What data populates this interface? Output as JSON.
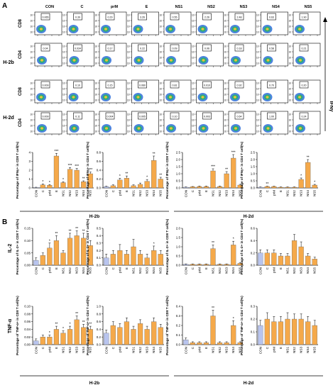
{
  "panel_labels": {
    "a": "A",
    "b": "B"
  },
  "flow": {
    "columns": [
      "CON",
      "C",
      "prM",
      "E",
      "NS1",
      "NS2",
      "NS3",
      "NS4",
      "NS5"
    ],
    "rows": [
      {
        "group": "H-2b",
        "label": "CD8",
        "values": [
          "0.065",
          "0.39",
          "0.29",
          "3.26",
          "0.55",
          "2.26",
          "2.48",
          "0.63",
          "1.90"
        ]
      },
      {
        "group": "H-2b",
        "label": "CD4",
        "values": [
          "0.04",
          "0.034",
          "0.17",
          "0.22",
          "0.09",
          "0.06",
          "0.18",
          "0.58",
          "0.21"
        ]
      },
      {
        "group": "H-2d",
        "label": "CD8",
        "values": [
          "0.009",
          "0.10",
          "0.15",
          "0.060",
          "0.81",
          "0.010",
          "0.92",
          "0.70",
          "0.20"
        ]
      },
      {
        "group": "H-2d",
        "label": "CD4",
        "values": [
          "0.009",
          "0.11",
          "0.004",
          "0.005",
          "0.10",
          "0.003",
          "0.64",
          "1.00",
          "0.24"
        ]
      }
    ],
    "group_labels": [
      "H-2b",
      "H-2d"
    ],
    "right_label": "IFNγ"
  },
  "chart_data": [
    {
      "type": "bar",
      "panel": "A",
      "ylabel": "Percentage of IFNγ+ in CD8 T cell(%)",
      "categories": [
        "CON",
        "C",
        "prM",
        "E",
        "NS1",
        "NS2",
        "NS3",
        "NS4",
        "NS5"
      ],
      "values": [
        0.05,
        0.35,
        0.3,
        3.6,
        0.6,
        2.1,
        2.0,
        0.7,
        1.6
      ],
      "errors": [
        0.03,
        0.1,
        0.08,
        0.3,
        0.1,
        0.2,
        0.2,
        0.1,
        0.2
      ],
      "stars": [
        "",
        "*",
        "*",
        "***",
        "*",
        "***",
        "***",
        "**",
        "***"
      ],
      "ylim": [
        0,
        4
      ],
      "yticks": [
        "0",
        "1",
        "2",
        "3",
        "4"
      ]
    },
    {
      "type": "bar",
      "panel": "A",
      "ylabel": "Percentage of IFNγ+ in CD4 T cell(%)",
      "categories": [
        "CON",
        "C",
        "prM",
        "E",
        "NS1",
        "NS2",
        "NS3",
        "NS4",
        "NS5"
      ],
      "values": [
        0.03,
        0.05,
        0.18,
        0.22,
        0.05,
        0.08,
        0.15,
        0.62,
        0.2
      ],
      "errors": [
        0.01,
        0.02,
        0.04,
        0.05,
        0.02,
        0.03,
        0.04,
        0.1,
        0.04
      ],
      "stars": [
        "",
        "",
        "*",
        "**",
        "",
        "",
        "*",
        "**",
        "**"
      ],
      "ylim": [
        0,
        0.8
      ],
      "yticks": [
        "0.0",
        "0.2",
        "0.4",
        "0.6",
        "0.8"
      ]
    },
    {
      "type": "bar",
      "panel": "A",
      "ylabel": "Percentage of IFNγ+ in CD8 T cell(%)",
      "categories": [
        "CON",
        "C",
        "prM",
        "E",
        "NS1",
        "NS2",
        "NS3",
        "NS4",
        "NS5"
      ],
      "values": [
        0.05,
        0.08,
        0.1,
        0.1,
        1.2,
        0.1,
        1.0,
        2.1,
        0.2
      ],
      "errors": [
        0.02,
        0.02,
        0.03,
        0.03,
        0.15,
        0.03,
        0.15,
        0.25,
        0.05
      ],
      "stars": [
        "",
        "",
        "",
        "",
        "***",
        "",
        "**",
        "***",
        ""
      ],
      "ylim": [
        0,
        2.5
      ],
      "yticks": [
        "0.0",
        "0.5",
        "1.0",
        "1.5",
        "2.0",
        "2.5"
      ]
    },
    {
      "type": "bar",
      "panel": "A",
      "ylabel": "Percentage of IFNγ+ in CD4 T cell(%)",
      "categories": [
        "CON",
        "C",
        "prM",
        "E",
        "NS1",
        "NS2",
        "NS3",
        "NS4",
        "NS5"
      ],
      "values": [
        0.05,
        0.1,
        0.1,
        0.05,
        0.05,
        0.05,
        0.6,
        1.8,
        0.2
      ],
      "errors": [
        0.02,
        0.02,
        0.02,
        0.02,
        0.02,
        0.02,
        0.1,
        0.2,
        0.05
      ],
      "stars": [
        "",
        "**",
        "",
        "",
        "",
        "",
        "*",
        "**",
        "*"
      ],
      "ylim": [
        0,
        2.5
      ],
      "yticks": [
        "0.0",
        "0.5",
        "1.0",
        "1.5",
        "2.0",
        "2.5"
      ]
    },
    {
      "type": "bar",
      "panel": "B",
      "ylabel": "Percentage of IL-2+ in CD8 T cell(%)",
      "categories": [
        "CON",
        "C",
        "prM",
        "E",
        "NS1",
        "NS2",
        "NS3",
        "NS4",
        "NS5"
      ],
      "values": [
        0.02,
        0.04,
        0.07,
        0.1,
        0.05,
        0.11,
        0.12,
        0.11,
        0.08
      ],
      "errors": [
        0.01,
        0.01,
        0.02,
        0.02,
        0.01,
        0.02,
        0.02,
        0.02,
        0.02
      ],
      "stars": [
        "",
        "",
        "*",
        "**",
        "",
        "**",
        "**",
        "**",
        ""
      ],
      "ylim": [
        0,
        0.15
      ],
      "yticks": [
        "0.00",
        "0.05",
        "0.10",
        "0.15"
      ]
    },
    {
      "type": "bar",
      "panel": "B",
      "ylabel": "Percentage of IL-2+ in CD4 T cell(%)",
      "categories": [
        "CON",
        "C",
        "prM",
        "E",
        "NS1",
        "NS2",
        "NS3",
        "NS4",
        "NS5"
      ],
      "values": [
        0.1,
        0.15,
        0.2,
        0.15,
        0.25,
        0.15,
        0.1,
        0.2,
        0.15
      ],
      "errors": [
        0.05,
        0.05,
        0.08,
        0.05,
        0.1,
        0.05,
        0.05,
        0.06,
        0.05
      ],
      "stars": [
        "",
        "",
        "",
        "",
        "",
        "",
        "",
        "*",
        ""
      ],
      "ylim": [
        0,
        0.5
      ],
      "yticks": [
        "0.0",
        "0.1",
        "0.2",
        "0.3",
        "0.4",
        "0.5"
      ]
    },
    {
      "type": "bar",
      "panel": "B",
      "ylabel": "Percentage of IL-2+ in CD8 T cell(%)",
      "categories": [
        "CON",
        "C",
        "prM",
        "E",
        "NS1",
        "NS2",
        "NS3",
        "NS4",
        "NS5"
      ],
      "values": [
        0.05,
        0.05,
        0.05,
        0.05,
        0.9,
        0.05,
        0.05,
        1.1,
        0.1
      ],
      "errors": [
        0.02,
        0.02,
        0.02,
        0.02,
        0.2,
        0.02,
        0.02,
        0.2,
        0.03
      ],
      "stars": [
        "",
        "",
        "",
        "",
        "**",
        "",
        "",
        "*",
        ""
      ],
      "ylim": [
        0,
        2
      ],
      "yticks": [
        "0.0",
        "0.5",
        "1.0",
        "1.5",
        "2.0"
      ]
    },
    {
      "type": "bar",
      "panel": "B",
      "ylabel": "Percentage of IL-2+ in CD4 T cell(%)",
      "categories": [
        "CON",
        "C",
        "prM",
        "E",
        "NS1",
        "NS2",
        "NS3",
        "NS4",
        "NS5"
      ],
      "values": [
        0.2,
        0.2,
        0.2,
        0.15,
        0.15,
        0.4,
        0.3,
        0.15,
        0.1
      ],
      "errors": [
        0.05,
        0.05,
        0.05,
        0.04,
        0.04,
        0.1,
        0.08,
        0.04,
        0.03
      ],
      "stars": [
        "",
        "",
        "",
        "",
        "",
        "",
        "",
        "",
        ""
      ],
      "ylim": [
        0,
        0.6
      ],
      "yticks": [
        "0.0",
        "0.2",
        "0.4",
        "0.6"
      ]
    },
    {
      "type": "bar",
      "panel": "B",
      "ylabel": "Percentage of TNF-α+ in CD8 T cell(%)",
      "categories": [
        "CON",
        "C",
        "prM",
        "E",
        "NS1",
        "NS2",
        "NS3",
        "NS4",
        "NS5"
      ],
      "values": [
        0.01,
        0.02,
        0.02,
        0.04,
        0.03,
        0.04,
        0.065,
        0.045,
        0.04
      ],
      "errors": [
        0.005,
        0.005,
        0.005,
        0.008,
        0.006,
        0.008,
        0.01,
        0.008,
        0.008
      ],
      "stars": [
        "",
        "",
        "*",
        "**",
        "*",
        "*",
        "**",
        "**",
        "**"
      ],
      "ylim": [
        0,
        0.1
      ],
      "yticks": [
        "0.00",
        "0.02",
        "0.04",
        "0.06",
        "0.08",
        "0.10"
      ]
    },
    {
      "type": "bar",
      "panel": "B",
      "ylabel": "Percentage of TNF-α+ in CD4 T cell(%)",
      "categories": [
        "CON",
        "C",
        "prM",
        "E",
        "NS1",
        "NS2",
        "NS3",
        "NS4",
        "NS5"
      ],
      "values": [
        0.3,
        0.5,
        0.45,
        0.6,
        0.4,
        0.55,
        0.4,
        0.6,
        0.45
      ],
      "errors": [
        0.08,
        0.1,
        0.1,
        0.1,
        0.08,
        0.1,
        0.08,
        0.1,
        0.08
      ],
      "stars": [
        "",
        "",
        "",
        "",
        "",
        "",
        "",
        "",
        ""
      ],
      "ylim": [
        0,
        1.0
      ],
      "yticks": [
        "0.0",
        "0.2",
        "0.4",
        "0.6",
        "0.8",
        "1.0"
      ]
    },
    {
      "type": "bar",
      "panel": "B",
      "ylabel": "Percentage of TNF-α+ in CD8 T cell(%)",
      "categories": [
        "CON",
        "C",
        "prM",
        "E",
        "NS1",
        "NS2",
        "NS3",
        "NS4",
        "NS5"
      ],
      "values": [
        0.05,
        0.02,
        0.02,
        0.02,
        0.3,
        0.02,
        0.02,
        0.2,
        0.02
      ],
      "errors": [
        0.02,
        0.01,
        0.01,
        0.01,
        0.06,
        0.01,
        0.01,
        0.05,
        0.01
      ],
      "stars": [
        "",
        "",
        "",
        "",
        "**",
        "",
        "",
        "*",
        ""
      ],
      "ylim": [
        0,
        0.4
      ],
      "yticks": [
        "0.0",
        "0.1",
        "0.2",
        "0.3",
        "0.4"
      ]
    },
    {
      "type": "bar",
      "panel": "B",
      "ylabel": "Percentage of TNF-α+ in CD4 T cell(%)",
      "categories": [
        "CON",
        "C",
        "prM",
        "E",
        "NS1",
        "NS2",
        "NS3",
        "NS4",
        "NS5"
      ],
      "values": [
        0.15,
        0.2,
        0.18,
        0.18,
        0.2,
        0.2,
        0.2,
        0.18,
        0.15
      ],
      "errors": [
        0.04,
        0.05,
        0.04,
        0.04,
        0.05,
        0.04,
        0.04,
        0.04,
        0.04
      ],
      "stars": [
        "",
        "",
        "",
        "",
        "",
        "",
        "",
        "",
        ""
      ],
      "ylim": [
        0,
        0.3
      ],
      "yticks": [
        "0.0",
        "0.1",
        "0.2",
        "0.3"
      ]
    }
  ],
  "row_labels_b": [
    "IL-2",
    "TNF-α"
  ],
  "group_labels_b": [
    "H-2b",
    "H-2d"
  ],
  "colors": {
    "con": "#b8c4ee",
    "bar": "#f5a94a",
    "gate": "#000000"
  }
}
